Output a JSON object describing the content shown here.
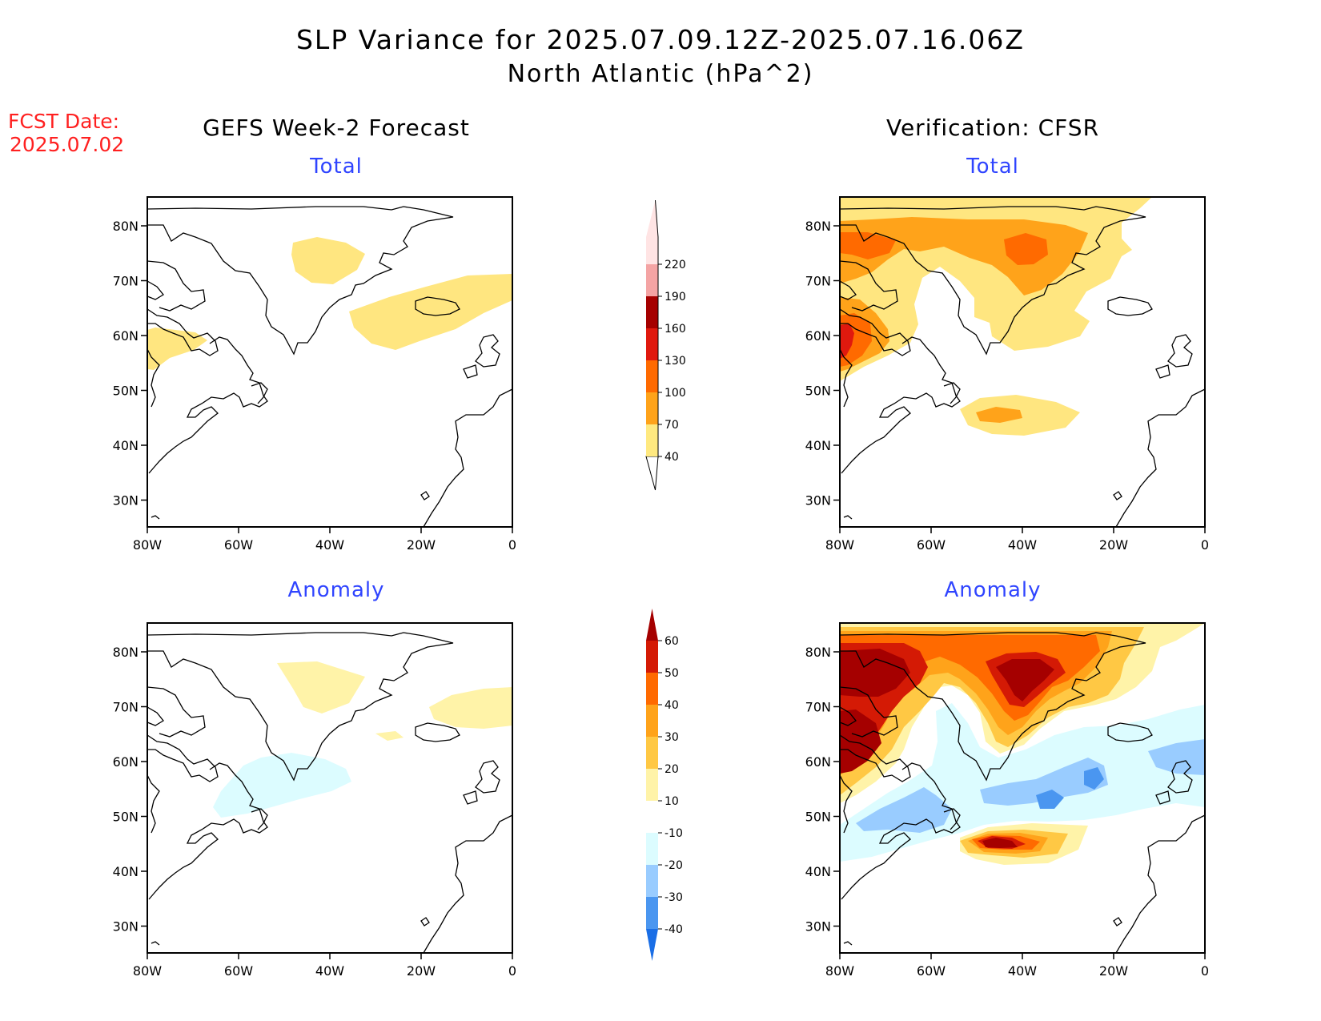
{
  "title_line1": "SLP Variance for 2025.07.09.12Z-2025.07.16.06Z",
  "title_line2": "North Atlantic (hPa^2)",
  "fcst_date_label": "FCST Date:",
  "fcst_date_value": "2025.07.02",
  "left_column_title": "GEFS Week-2 Forecast",
  "right_column_title": "Verification: CFSR",
  "panel_titles": {
    "top_left": "Total",
    "top_right": "Total",
    "bottom_left": "Anomaly",
    "bottom_right": "Anomaly"
  },
  "axes": {
    "lon_labels": [
      "80W",
      "60W",
      "40W",
      "20W",
      "0"
    ],
    "lat_labels": [
      "80N",
      "70N",
      "60N",
      "50N",
      "40N",
      "30N"
    ]
  },
  "colorbars": {
    "total": {
      "levels": [
        "40",
        "70",
        "100",
        "130",
        "160",
        "190",
        "220"
      ],
      "colors": [
        "#ffe980",
        "#ffa31a",
        "#ff6a00",
        "#e0190e",
        "#a50000",
        "#f4a4a4",
        "#ffe4e4"
      ]
    },
    "anomaly": {
      "levels": [
        "60",
        "50",
        "40",
        "30",
        "20",
        "10",
        "-10",
        "-20",
        "-30",
        "-40"
      ],
      "colors": [
        "#a50000",
        "#d41a05",
        "#ff6a00",
        "#ffa31a",
        "#ffc844",
        "#fff3a8",
        "#ffffff",
        "#dcfcff",
        "#99ccff",
        "#4a96f0",
        "#1a6ee6"
      ]
    }
  },
  "map_colors": {
    "total_40": "#ffe680",
    "total_70": "#ffa31a",
    "total_100": "#ff6a00",
    "total_130": "#e0190e",
    "anom_10": "#fff3a8",
    "anom_20": "#ffc844",
    "anom_30": "#ffa31a",
    "anom_40": "#ff6a00",
    "anom_50": "#d41a05",
    "anom_60": "#a50000",
    "anom_neg10": "#dcfcff",
    "anom_neg20": "#99ccff",
    "anom_neg30": "#4a96f0"
  }
}
